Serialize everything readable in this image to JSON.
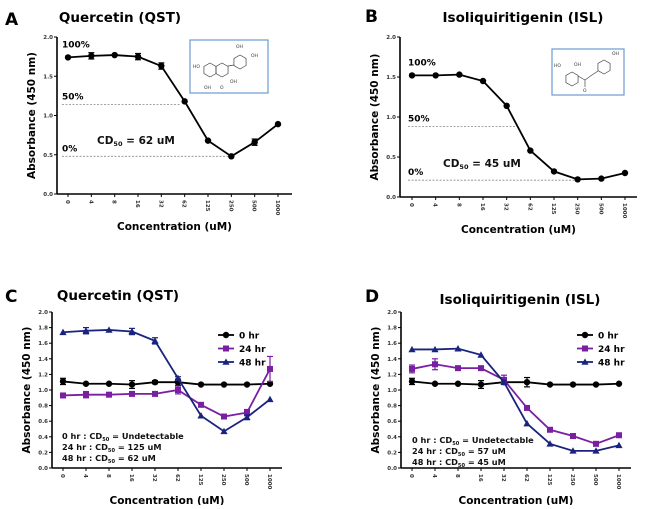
{
  "chart_data": [
    {
      "panel_label": "A",
      "type": "line",
      "title": "Quercetin (QST)",
      "xlabel": "Concentration (uM)",
      "ylabel": "Absorbance (450 nm)",
      "categories": [
        "0",
        "4",
        "8",
        "16",
        "32",
        "62",
        "125",
        "250",
        "500",
        "1000"
      ],
      "ylim": [
        0,
        2.0
      ],
      "yticks": [
        "0.0",
        "0.5",
        "1.0",
        "1.5",
        "2.0"
      ],
      "series": [
        {
          "color": "#000000",
          "marker": "circle",
          "values": [
            1.74,
            1.76,
            1.77,
            1.75,
            1.63,
            1.18,
            0.68,
            0.48,
            0.66,
            0.89
          ],
          "errors": [
            0.01,
            0.04,
            0.01,
            0.04,
            0.04,
            0.01,
            0.01,
            0.01,
            0.04,
            0.01
          ]
        }
      ],
      "reference_lines": [
        {
          "label": "100%",
          "value": 1.74
        },
        {
          "label": "50%",
          "value": 1.14
        },
        {
          "label": "0%",
          "value": 0.48
        }
      ],
      "annotations": [
        {
          "pre": "CD",
          "sub": "50",
          "post": " = 62 uM"
        }
      ],
      "structure": {
        "labels": [
          "OH",
          "OH",
          "HO",
          "OH",
          "OH",
          "O"
        ]
      }
    },
    {
      "panel_label": "B",
      "type": "line",
      "title": "Isoliquiritigenin (ISL)",
      "xlabel": "Concentration (uM)",
      "ylabel": "Absorbance (450 nm)",
      "categories": [
        "0",
        "4",
        "8",
        "16",
        "32",
        "62",
        "125",
        "250",
        "500",
        "1000"
      ],
      "ylim": [
        0,
        2.0
      ],
      "yticks": [
        "0.0",
        "0.5",
        "1.0",
        "1.5",
        "2.0"
      ],
      "series": [
        {
          "color": "#000000",
          "marker": "circle",
          "values": [
            1.52,
            1.52,
            1.53,
            1.45,
            1.14,
            0.58,
            0.32,
            0.22,
            0.23,
            0.3
          ],
          "errors": [
            0.01,
            0.01,
            0.01,
            0.01,
            0.01,
            0.01,
            0.01,
            0.01,
            0.01,
            0.01
          ]
        }
      ],
      "reference_lines": [
        {
          "label": "100%",
          "value": 1.52
        },
        {
          "label": "50%",
          "value": 0.88
        },
        {
          "label": "0%",
          "value": 0.21
        }
      ],
      "annotations": [
        {
          "pre": "CD",
          "sub": "50",
          "post": " = 45 uM"
        }
      ],
      "structure": {
        "labels": [
          "OH",
          "HO",
          "OH",
          "O"
        ]
      }
    },
    {
      "panel_label": "C",
      "type": "line",
      "title": "Quercetin (QST)",
      "xlabel": "Concentration (uM)",
      "ylabel": "Absorbance (450 nm)",
      "categories": [
        "0",
        "4",
        "8",
        "16",
        "32",
        "62",
        "125",
        "250",
        "500",
        "1000"
      ],
      "ylim": [
        0,
        2.0
      ],
      "yticks": [
        "0.0",
        "0.2",
        "0.4",
        "0.6",
        "0.8",
        "1.0",
        "1.2",
        "1.4",
        "1.6",
        "1.8",
        "2.0"
      ],
      "legend": "top-right",
      "series": [
        {
          "name": "0 hr",
          "color": "#000000",
          "marker": "circle",
          "values": [
            1.11,
            1.08,
            1.08,
            1.07,
            1.1,
            1.1,
            1.07,
            1.07,
            1.07,
            1.08
          ],
          "errors": [
            0.04,
            0.01,
            0.01,
            0.05,
            0.02,
            0.04,
            0.01,
            0.01,
            0.01,
            0.01
          ]
        },
        {
          "name": "24 hr",
          "color": "#7b1fa2",
          "marker": "square",
          "values": [
            0.93,
            0.94,
            0.94,
            0.95,
            0.95,
            1.0,
            0.81,
            0.66,
            0.71,
            1.27
          ],
          "errors": [
            0.01,
            0.04,
            0.01,
            0.01,
            0.01,
            0.05,
            0.01,
            0.01,
            0.04,
            0.16
          ]
        },
        {
          "name": "48 hr",
          "color": "#1a237e",
          "marker": "triangle",
          "values": [
            1.74,
            1.76,
            1.77,
            1.75,
            1.63,
            1.15,
            0.67,
            0.47,
            0.65,
            0.88
          ],
          "errors": [
            0.01,
            0.04,
            0.01,
            0.04,
            0.04,
            0.02,
            0.01,
            0.01,
            0.03,
            0.01
          ]
        }
      ],
      "annotations": [
        {
          "pre": "0 hr : CD",
          "sub": "50",
          "post": " = Undetectable"
        },
        {
          "pre": "24 hr : CD",
          "sub": "50",
          "post": " = 125 uM"
        },
        {
          "pre": "48 hr : CD",
          "sub": "50",
          "post": " = 62 uM"
        }
      ]
    },
    {
      "panel_label": "D",
      "type": "line",
      "title": "Isoliquiritigenin (ISL)",
      "xlabel": "Concentration (uM)",
      "ylabel": "Absorbance (450 nm)",
      "categories": [
        "0",
        "4",
        "8",
        "16",
        "32",
        "62",
        "125",
        "250",
        "500",
        "1000"
      ],
      "ylim": [
        0,
        2.0
      ],
      "yticks": [
        "0.0",
        "0.2",
        "0.4",
        "0.6",
        "0.8",
        "1.0",
        "1.2",
        "1.4",
        "1.6",
        "1.8",
        "2.0"
      ],
      "legend": "top-right",
      "series": [
        {
          "name": "0 hr",
          "color": "#000000",
          "marker": "circle",
          "values": [
            1.11,
            1.08,
            1.08,
            1.07,
            1.1,
            1.1,
            1.07,
            1.07,
            1.07,
            1.08
          ],
          "errors": [
            0.04,
            0.01,
            0.01,
            0.05,
            0.02,
            0.06,
            0.01,
            0.01,
            0.01,
            0.01
          ]
        },
        {
          "name": "24 hr",
          "color": "#7b1fa2",
          "marker": "square",
          "values": [
            1.27,
            1.33,
            1.28,
            1.28,
            1.13,
            0.77,
            0.49,
            0.41,
            0.31,
            0.42
          ],
          "errors": [
            0.05,
            0.07,
            0.01,
            0.01,
            0.06,
            0.01,
            0.01,
            0.01,
            0.01,
            0.01
          ]
        },
        {
          "name": "48 hr",
          "color": "#1a237e",
          "marker": "triangle",
          "values": [
            1.52,
            1.52,
            1.53,
            1.45,
            1.1,
            0.57,
            0.31,
            0.22,
            0.22,
            0.29
          ],
          "errors": [
            0.01,
            0.01,
            0.01,
            0.01,
            0.02,
            0.01,
            0.01,
            0.01,
            0.01,
            0.01
          ]
        }
      ],
      "annotations": [
        {
          "pre": "0 hr : CD",
          "sub": "50",
          "post": " = Undetectable"
        },
        {
          "pre": "24 hr : CD",
          "sub": "50",
          "post": " = 57 uM"
        },
        {
          "pre": "48 hr : CD",
          "sub": "50",
          "post": " = 45 uM"
        }
      ]
    }
  ]
}
